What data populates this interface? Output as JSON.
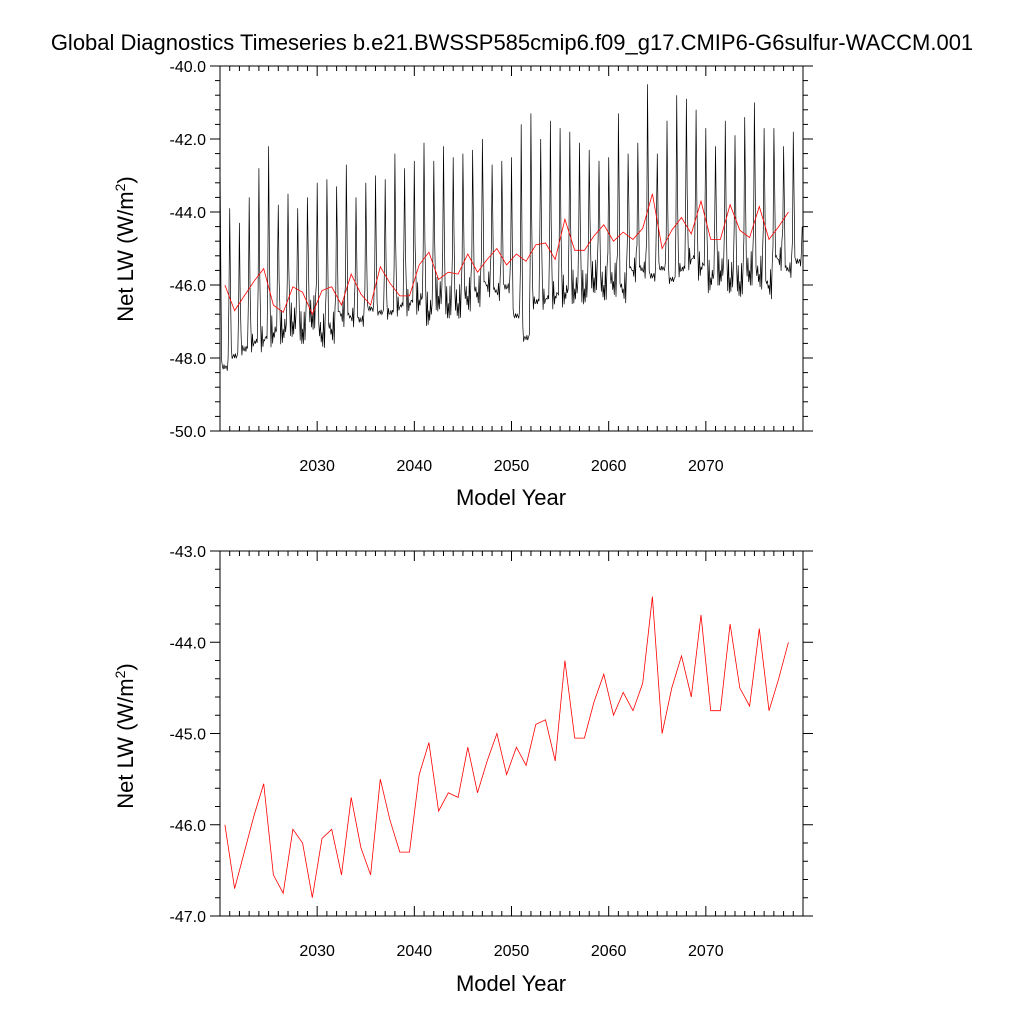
{
  "title": "Global Diagnostics Timeseries b.e21.BWSSP585cmip6.f09_g17.CMIP6-G6sulfur-WACCM.001",
  "colors": {
    "monthly": "#000000",
    "annual": "#ff0000",
    "frame": "#000000"
  },
  "chart_data": [
    {
      "type": "line",
      "xlabel": "Model Year",
      "ylabel_main": "Net LW (W/m",
      "ylabel_sup": "2",
      "ylabel_close": ")",
      "xlim": [
        2020,
        2080
      ],
      "ylim": [
        -50,
        -40
      ],
      "x_ticks": [
        2030,
        2040,
        2050,
        2060,
        2070
      ],
      "x_tick_labels": [
        "2030",
        "2040",
        "2050",
        "2060",
        "2070"
      ],
      "y_ticks": [
        -40,
        -42,
        -44,
        -46,
        -48,
        -50
      ],
      "y_tick_labels": [
        "-40.0",
        "-42.0",
        "-44.0",
        "-46.0",
        "-48.0",
        "-50.0"
      ],
      "series": [
        {
          "series_role": "monthly",
          "color": "#000000",
          "start_year": 2020,
          "monthly_cycle_low": [
            -48.3,
            -48.0,
            -47.8,
            -47.6,
            -47.5,
            -47.3,
            -47.2,
            -47.0,
            -47.2,
            -46.8,
            -47.3,
            -47.2,
            -46.8,
            -46.9,
            -47.0,
            -46.7,
            -46.8,
            -46.8,
            -46.6,
            -46.5,
            -46.4,
            -46.7,
            -46.3,
            -46.5,
            -46.5,
            -46.3,
            -46.2,
            -46.0,
            -46.2,
            -46.1,
            -46.9,
            -47.5,
            -46.5,
            -46.4,
            -46.3,
            -46.2,
            -46.1,
            -46.1,
            -45.8,
            -46.0,
            -45.9,
            -46.1,
            -45.6,
            -45.6,
            -45.8,
            -45.6,
            -45.9,
            -45.6,
            -45.3,
            -45.5,
            -45.8,
            -45.6,
            -45.8,
            -45.9,
            -45.6,
            -45.7,
            -46.0,
            -45.3,
            -45.6,
            -45.4
          ],
          "monthly_cycle_high": [
            -42.4,
            -43.9,
            -44.3,
            -43.6,
            -42.8,
            -42.2,
            -43.8,
            -43.5,
            -43.9,
            -43.6,
            -43.2,
            -43.1,
            -43.3,
            -42.7,
            -43.6,
            -43.2,
            -43.0,
            -43.1,
            -42.4,
            -42.8,
            -42.6,
            -42.1,
            -42.6,
            -42.2,
            -42.5,
            -42.4,
            -42.3,
            -42.0,
            -42.7,
            -42.6,
            -42.5,
            -41.6,
            -41.3,
            -42.0,
            -41.5,
            -41.7,
            -41.8,
            -42.1,
            -42.3,
            -42.6,
            -42.5,
            -41.3,
            -42.4,
            -42.1,
            -40.5,
            -42.4,
            -41.5,
            -40.8,
            -40.9,
            -41.2,
            -41.7,
            -42.2,
            -41.5,
            -41.9,
            -41.4,
            -41.0,
            -41.7,
            -41.7,
            -42.2,
            -41.8
          ]
        },
        {
          "series_role": "annual",
          "color": "#ff0000",
          "x": [
            2020.5,
            2021.5,
            2022.5,
            2023.5,
            2024.5,
            2025.5,
            2026.5,
            2027.5,
            2028.5,
            2029.5,
            2030.5,
            2031.5,
            2032.5,
            2033.5,
            2034.5,
            2035.5,
            2036.5,
            2037.5,
            2038.5,
            2039.5,
            2040.5,
            2041.5,
            2042.5,
            2043.5,
            2044.5,
            2045.5,
            2046.5,
            2047.5,
            2048.5,
            2049.5,
            2050.5,
            2051.5,
            2052.5,
            2053.5,
            2054.5,
            2055.5,
            2056.5,
            2057.5,
            2058.5,
            2059.5,
            2060.5,
            2061.5,
            2062.5,
            2063.5,
            2064.5,
            2065.5,
            2066.5,
            2067.5,
            2068.5,
            2069.5,
            2070.5,
            2071.5,
            2072.5,
            2073.5,
            2074.5,
            2075.5,
            2076.5,
            2077.5,
            2078.5
          ],
          "y": [
            -46.0,
            -46.7,
            -46.3,
            -45.9,
            -45.55,
            -46.55,
            -46.75,
            -46.05,
            -46.2,
            -46.8,
            -46.15,
            -46.05,
            -46.55,
            -45.7,
            -46.25,
            -46.55,
            -45.5,
            -45.95,
            -46.3,
            -46.3,
            -45.45,
            -45.1,
            -45.85,
            -45.65,
            -45.7,
            -45.15,
            -45.65,
            -45.3,
            -45.0,
            -45.45,
            -45.15,
            -45.35,
            -44.9,
            -44.85,
            -45.3,
            -44.2,
            -45.05,
            -45.05,
            -44.65,
            -44.35,
            -44.8,
            -44.55,
            -44.75,
            -44.45,
            -43.5,
            -45.0,
            -44.5,
            -44.15,
            -44.6,
            -43.7,
            -44.75,
            -44.75,
            -43.8,
            -44.5,
            -44.7,
            -43.85,
            -44.75,
            -44.4,
            -44.0
          ]
        }
      ]
    },
    {
      "type": "line",
      "xlabel": "Model Year",
      "ylabel_main": "Net LW (W/m",
      "ylabel_sup": "2",
      "ylabel_close": ")",
      "xlim": [
        2020,
        2080
      ],
      "ylim": [
        -47,
        -43
      ],
      "x_ticks": [
        2030,
        2040,
        2050,
        2060,
        2070
      ],
      "x_tick_labels": [
        "2030",
        "2040",
        "2050",
        "2060",
        "2070"
      ],
      "y_ticks": [
        -43,
        -44,
        -45,
        -46,
        -47
      ],
      "y_tick_labels": [
        "-43.0",
        "-44.0",
        "-45.0",
        "-46.0",
        "-47.0"
      ],
      "series": [
        {
          "series_role": "annual",
          "color": "#ff0000",
          "x": [
            2020.5,
            2021.5,
            2022.5,
            2023.5,
            2024.5,
            2025.5,
            2026.5,
            2027.5,
            2028.5,
            2029.5,
            2030.5,
            2031.5,
            2032.5,
            2033.5,
            2034.5,
            2035.5,
            2036.5,
            2037.5,
            2038.5,
            2039.5,
            2040.5,
            2041.5,
            2042.5,
            2043.5,
            2044.5,
            2045.5,
            2046.5,
            2047.5,
            2048.5,
            2049.5,
            2050.5,
            2051.5,
            2052.5,
            2053.5,
            2054.5,
            2055.5,
            2056.5,
            2057.5,
            2058.5,
            2059.5,
            2060.5,
            2061.5,
            2062.5,
            2063.5,
            2064.5,
            2065.5,
            2066.5,
            2067.5,
            2068.5,
            2069.5,
            2070.5,
            2071.5,
            2072.5,
            2073.5,
            2074.5,
            2075.5,
            2076.5,
            2077.5,
            2078.5
          ],
          "y": [
            -46.0,
            -46.7,
            -46.3,
            -45.9,
            -45.55,
            -46.55,
            -46.75,
            -46.05,
            -46.2,
            -46.8,
            -46.15,
            -46.05,
            -46.55,
            -45.7,
            -46.25,
            -46.55,
            -45.5,
            -45.95,
            -46.3,
            -46.3,
            -45.45,
            -45.1,
            -45.85,
            -45.65,
            -45.7,
            -45.15,
            -45.65,
            -45.3,
            -45.0,
            -45.45,
            -45.15,
            -45.35,
            -44.9,
            -44.85,
            -45.3,
            -44.2,
            -45.05,
            -45.05,
            -44.65,
            -44.35,
            -44.8,
            -44.55,
            -44.75,
            -44.45,
            -43.5,
            -45.0,
            -44.5,
            -44.15,
            -44.6,
            -43.7,
            -44.75,
            -44.75,
            -43.8,
            -44.5,
            -44.7,
            -43.85,
            -44.75,
            -44.4,
            -44.0
          ]
        }
      ]
    }
  ]
}
